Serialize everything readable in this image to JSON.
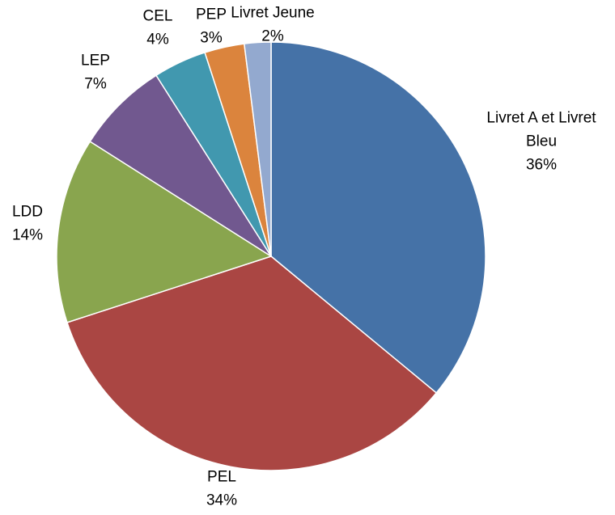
{
  "chart_data": {
    "type": "pie",
    "title": "",
    "slices": [
      {
        "label_lines": [
          "Livret A et Livret",
          "Bleu"
        ],
        "value": 36,
        "value_label": "36%",
        "color": "#4572A7"
      },
      {
        "label_lines": [
          "PEL"
        ],
        "value": 34,
        "value_label": "34%",
        "color": "#AA4643"
      },
      {
        "label_lines": [
          "LDD"
        ],
        "value": 14,
        "value_label": "14%",
        "color": "#89A54E"
      },
      {
        "label_lines": [
          "LEP"
        ],
        "value": 7,
        "value_label": "7%",
        "color": "#71588F"
      },
      {
        "label_lines": [
          "CEL"
        ],
        "value": 4,
        "value_label": "4%",
        "color": "#4198AF"
      },
      {
        "label_lines": [
          "PEP"
        ],
        "value": 3,
        "value_label": "3%",
        "color": "#DB843D"
      },
      {
        "label_lines": [
          "Livret Jeune"
        ],
        "value": 2,
        "value_label": "2%",
        "color": "#93A9CF"
      }
    ],
    "start": "12 o'clock",
    "direction": "clockwise",
    "legend": "none"
  }
}
